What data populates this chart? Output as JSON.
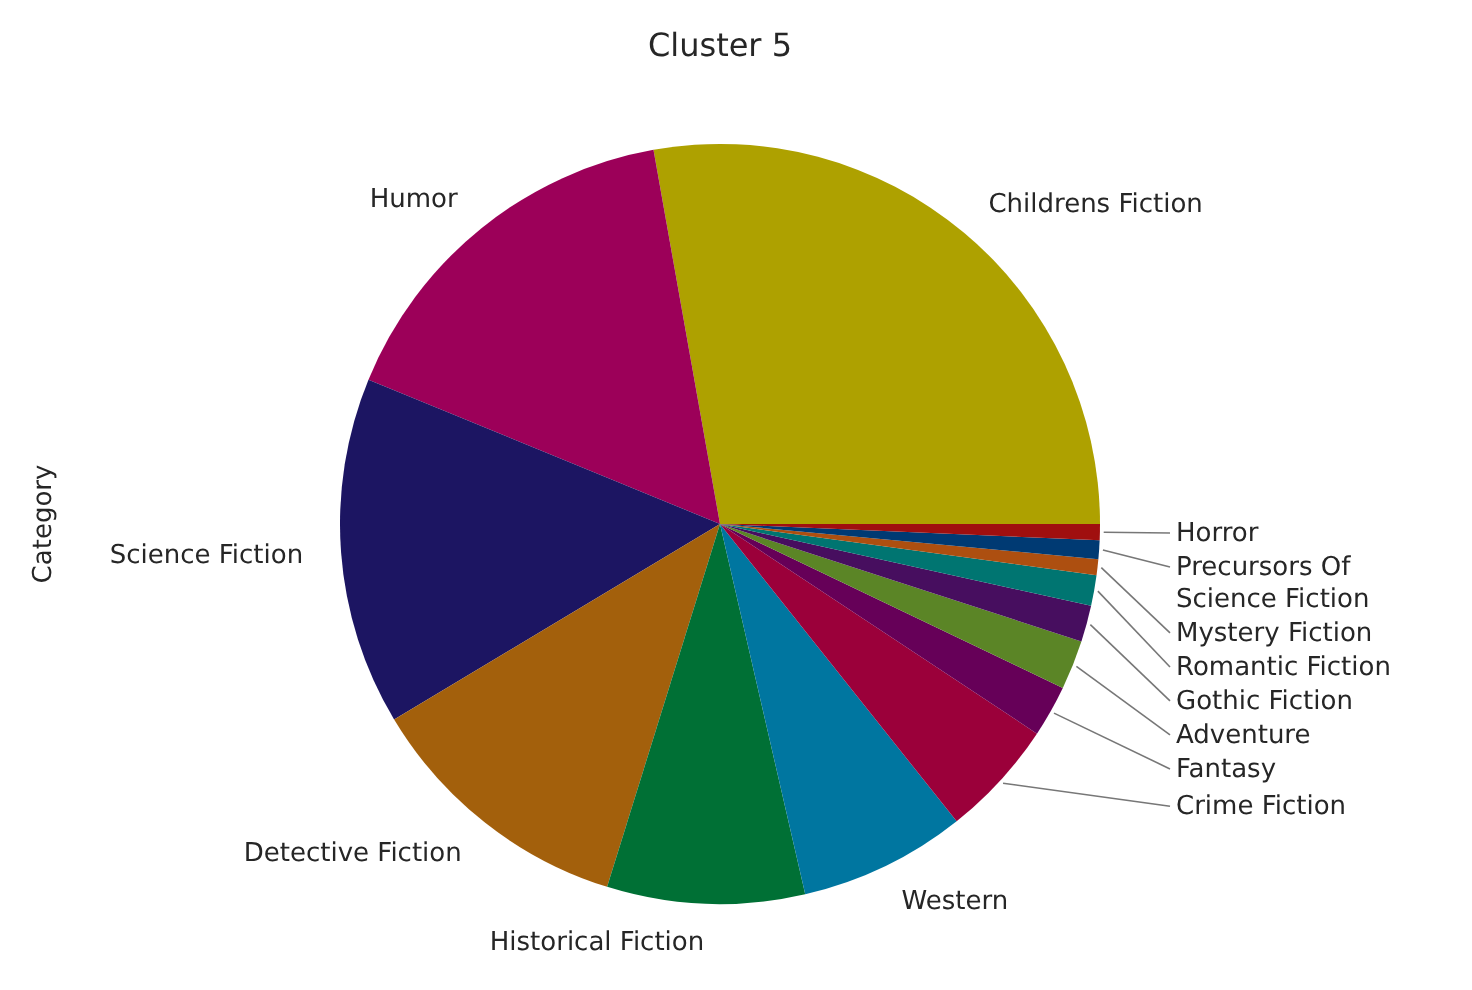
{
  "chart_data": {
    "type": "pie",
    "title": "Cluster 5",
    "ylabel": "Category",
    "categories": [
      "Childrens Fiction",
      "Humor",
      "Science Fiction",
      "Detective Fiction",
      "Historical Fiction",
      "Western",
      "Crime Fiction",
      "Fantasy",
      "Adventure",
      "Gothic Fiction",
      "Romantic Fiction",
      "Mystery Fiction",
      "Precursors Of Science Fiction",
      "Horror"
    ],
    "values": [
      27.8,
      16.0,
      14.8,
      11.6,
      8.4,
      7.1,
      5.0,
      2.2,
      2.1,
      1.55,
      1.3,
      0.67,
      0.8,
      0.68
    ],
    "colors": [
      "#aea100",
      "#9c0059",
      "#1c1562",
      "#a3600c",
      "#007035",
      "#0076a0",
      "#9b003a",
      "#660058",
      "#5b8526",
      "#470e5f",
      "#007571",
      "#ad4f10",
      "#003a73",
      "#a00f0f"
    ]
  }
}
